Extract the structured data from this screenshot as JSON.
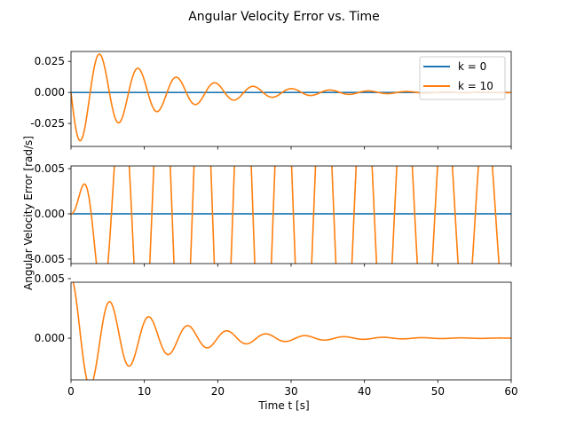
{
  "figure": {
    "title": "Angular Velocity Error vs. Time",
    "xlabel": "Time t [s]",
    "ylabel": "Angular Velocity Error [rad/s]"
  },
  "legend": {
    "position": "top-right of first subplot",
    "entries": [
      {
        "label": "k = 0",
        "color": "#1f77b4"
      },
      {
        "label": "k = 10",
        "color": "#ff7f0e"
      }
    ]
  },
  "chart_data": [
    {
      "type": "line",
      "subplot": 1,
      "xlim": [
        0,
        60
      ],
      "ylim": [
        -0.0435,
        0.033
      ],
      "yticks": [
        -0.025,
        0.0,
        0.025
      ],
      "ytick_labels": [
        "-0.025",
        "0.000",
        "0.025"
      ],
      "xticks": [
        0,
        10,
        20,
        30,
        40,
        50,
        60
      ],
      "xtick_labels": [],
      "series": [
        {
          "name": "k = 0",
          "color": "#1f77b4",
          "constant": 0.0
        },
        {
          "name": "k = 10",
          "color": "#ff7f0e",
          "model": {
            "offset": 0.0,
            "amplitude": -0.0435,
            "decay": 0.088,
            "omega": 1.2,
            "phase": 0.0,
            "t0": 0.0,
            "shape": "sin"
          }
        }
      ]
    },
    {
      "type": "line",
      "subplot": 2,
      "xlim": [
        0,
        60
      ],
      "ylim": [
        -0.0055,
        0.0053
      ],
      "yticks": [
        -0.005,
        0.0,
        0.005
      ],
      "ytick_labels": [
        "-0.005",
        "0.000",
        "0.005"
      ],
      "xticks": [
        0,
        10,
        20,
        30,
        40,
        50,
        60
      ],
      "xtick_labels": [],
      "series": [
        {
          "name": "k = 0",
          "color": "#1f77b4",
          "constant": 0.0
        },
        {
          "name": "k = 10",
          "color": "#ff7f0e",
          "model": {
            "type": "beating",
            "amp": 0.0021,
            "decay": 0.047,
            "omega": 1.14,
            "rise": 0.55
          }
        }
      ]
    },
    {
      "type": "line",
      "subplot": 3,
      "xlim": [
        0,
        60
      ],
      "ylim": [
        -0.0035,
        0.0047
      ],
      "yticks": [
        0.0,
        0.005
      ],
      "ytick_labels": [
        "0.000",
        "0.005"
      ],
      "xticks": [
        0,
        10,
        20,
        30,
        40,
        50,
        60
      ],
      "xtick_labels": [
        "0",
        "10",
        "20",
        "30",
        "40",
        "50",
        "60"
      ],
      "series": [
        {
          "name": "k = 0",
          "color": "#1f77b4",
          "constant": 0.005
        },
        {
          "name": "k = 10",
          "color": "#ff7f0e",
          "model": {
            "offset": 0.0,
            "amplitude": 0.0052,
            "decay": 0.1,
            "omega": 1.18,
            "phase": 0.0,
            "t0": 0.0,
            "shape": "cos"
          }
        }
      ]
    }
  ]
}
